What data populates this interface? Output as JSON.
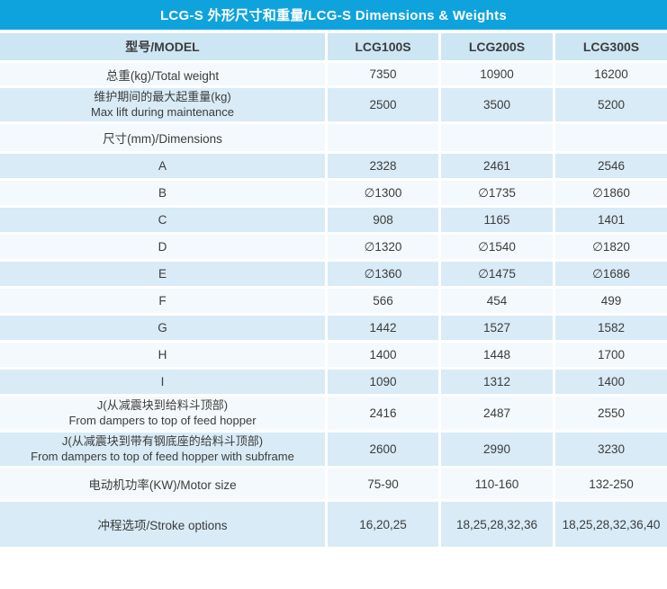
{
  "title": "LCG-S 外形尺寸和重量/LCG-S Dimensions & Weights",
  "colors": {
    "title_bg": "#0fa3dd",
    "title_text": "#ffffff",
    "header_bg": "#cde6f3",
    "row_blue": "#d8ebf6",
    "row_white": "#f3f9fc",
    "text": "#3c3c3c"
  },
  "table": {
    "header": {
      "model_label": "型号/MODEL",
      "col1": "LCG100S",
      "col2": "LCG200S",
      "col3": "LCG300S"
    },
    "rows": [
      {
        "label": "总重(kg)/Total weight",
        "values": [
          "7350",
          "10900",
          "16200"
        ]
      },
      {
        "label": "维护期间的最大起重量(kg)",
        "label2": "Max lift during maintenance",
        "values": [
          "2500",
          "3500",
          "5200"
        ]
      },
      {
        "label": "尺寸(mm)/Dimensions",
        "values": [
          "",
          "",
          ""
        ]
      },
      {
        "label": "A",
        "values": [
          "2328",
          "2461",
          "2546"
        ]
      },
      {
        "label": "B",
        "values": [
          "∅1300",
          "∅1735",
          "∅1860"
        ]
      },
      {
        "label": "C",
        "values": [
          "908",
          "1165",
          "1401"
        ]
      },
      {
        "label": "D",
        "values": [
          "∅1320",
          "∅1540",
          "∅1820"
        ]
      },
      {
        "label": "E",
        "values": [
          "∅1360",
          "∅1475",
          "∅1686"
        ]
      },
      {
        "label": "F",
        "values": [
          "566",
          "454",
          "499"
        ]
      },
      {
        "label": "G",
        "values": [
          "1442",
          "1527",
          "1582"
        ]
      },
      {
        "label": "H",
        "values": [
          "1400",
          "1448",
          "1700"
        ]
      },
      {
        "label": "I",
        "values": [
          "1090",
          "1312",
          "1400"
        ]
      },
      {
        "label": "J(从减震块到给料斗顶部)",
        "label2": "From dampers to top of feed hopper",
        "values": [
          "2416",
          "2487",
          "2550"
        ]
      },
      {
        "label": "J(从减震块到带有钢底座的给料斗顶部)",
        "label2": "From dampers to top of feed hopper with subframe",
        "values": [
          "2600",
          "2990",
          "3230"
        ]
      },
      {
        "label": "电动机功率(KW)/Motor size",
        "values": [
          "75-90",
          "110-160",
          "132-250"
        ]
      },
      {
        "label": "冲程选项/Stroke options",
        "values": [
          "16,20,25",
          "18,25,28,32,36",
          "18,25,28,32,36,40"
        ]
      }
    ]
  }
}
